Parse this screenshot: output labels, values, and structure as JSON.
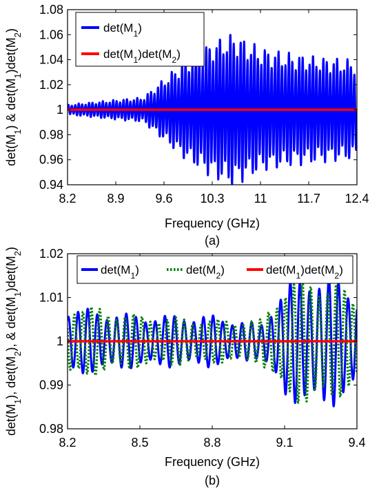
{
  "chart_data": [
    {
      "type": "line",
      "panel_label": "(a)",
      "xlabel": "Frequency (GHz)",
      "ylabel": "det(M1) & det(M1)det(M2)",
      "xlim": [
        8.2,
        12.4
      ],
      "ylim": [
        0.94,
        1.08
      ],
      "xticks": [
        8.2,
        8.9,
        9.6,
        10.3,
        11,
        11.7,
        12.4
      ],
      "yticks": [
        0.94,
        0.96,
        0.98,
        1,
        1.02,
        1.04,
        1.06,
        1.08
      ],
      "grid": false,
      "legend_position": "top-left",
      "series": [
        {
          "name": "det(M1)",
          "color": "#0000ff",
          "style": "solid",
          "oscillation": {
            "period_ghz": 0.05,
            "envelope": [
              [
                8.2,
                0.004
              ],
              [
                8.9,
                0.008
              ],
              [
                9.3,
                0.01
              ],
              [
                9.6,
                0.025
              ],
              [
                9.9,
                0.04
              ],
              [
                10.3,
                0.055
              ],
              [
                10.6,
                0.062
              ],
              [
                11.0,
                0.05
              ],
              [
                11.5,
                0.045
              ],
              [
                12.0,
                0.042
              ],
              [
                12.4,
                0.04
              ]
            ]
          }
        },
        {
          "name": "det(M1)det(M2)",
          "color": "#ff0000",
          "style": "solid",
          "x": [
            8.2,
            12.4
          ],
          "y": [
            1,
            1
          ]
        }
      ]
    },
    {
      "type": "line",
      "panel_label": "(b)",
      "xlabel": "Frequency (GHz)",
      "ylabel": "det(M1), det(M2), & det(M1)det(M2)",
      "xlim": [
        8.2,
        9.4
      ],
      "ylim": [
        0.98,
        1.02
      ],
      "xticks": [
        8.2,
        8.5,
        8.8,
        9.1,
        9.4
      ],
      "yticks": [
        0.98,
        0.99,
        1,
        1.01,
        1.02
      ],
      "grid": false,
      "legend_position": "top",
      "series": [
        {
          "name": "det(M1)",
          "color": "#0000ff",
          "style": "solid",
          "oscillation": {
            "period_ghz": 0.04,
            "envelope": [
              [
                8.2,
                0.008
              ],
              [
                8.5,
                0.006
              ],
              [
                8.8,
                0.006
              ],
              [
                9.0,
                0.004
              ],
              [
                9.1,
                0.013
              ],
              [
                9.2,
                0.016
              ],
              [
                9.3,
                0.015
              ],
              [
                9.4,
                0.012
              ]
            ]
          }
        },
        {
          "name": "det(M2)",
          "color": "#008000",
          "style": "dotted",
          "oscillation": {
            "period_ghz": 0.035,
            "envelope": [
              [
                8.2,
                0.009
              ],
              [
                8.5,
                0.006
              ],
              [
                8.8,
                0.005
              ],
              [
                9.0,
                0.005
              ],
              [
                9.1,
                0.013
              ],
              [
                9.2,
                0.015
              ],
              [
                9.3,
                0.014
              ],
              [
                9.4,
                0.01
              ]
            ]
          }
        },
        {
          "name": "det(M1)det(M2)",
          "color": "#ff0000",
          "style": "solid",
          "x": [
            8.2,
            9.4
          ],
          "y": [
            1,
            1
          ]
        }
      ]
    }
  ]
}
